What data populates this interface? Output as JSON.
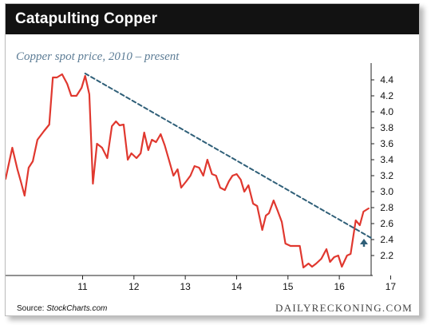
{
  "header": {
    "title": "Catapulting Copper"
  },
  "subtitle": "Copper spot price, 2010 – present",
  "source": {
    "prefix": "Source: ",
    "name": "StockCharts.com"
  },
  "brand": "DAILYRECKONING.COM",
  "colors": {
    "header_bg": "#121212",
    "price_line": "#e0382f",
    "trend_line": "#2f5f78",
    "arrow": "#2f5f78"
  },
  "chart_data": {
    "type": "line",
    "title": "Catapulting Copper",
    "subtitle": "Copper spot price, 2010 – present",
    "xlabel": "",
    "ylabel": "",
    "x_ticks": [
      "11",
      "12",
      "13",
      "14",
      "15",
      "16",
      "17"
    ],
    "y_ticks": [
      "4.4",
      "4.2",
      "4.0",
      "3.8",
      "3.6",
      "3.4",
      "3.2",
      "3.0",
      "2.8",
      "2.6",
      "2.4",
      "2.2"
    ],
    "y_axis_side": "right",
    "ylim": [
      1.95,
      4.55
    ],
    "xlim": [
      2010.0,
      2017.12
    ],
    "grid": false,
    "series": [
      {
        "style": "solid",
        "points": [
          [
            2010.0,
            3.16
          ],
          [
            2010.13,
            3.55
          ],
          [
            2010.23,
            3.28
          ],
          [
            2010.3,
            3.12
          ],
          [
            2010.37,
            2.95
          ],
          [
            2010.45,
            3.3
          ],
          [
            2010.53,
            3.38
          ],
          [
            2010.62,
            3.65
          ],
          [
            2010.75,
            3.76
          ],
          [
            2010.85,
            3.84
          ],
          [
            2010.92,
            4.43
          ],
          [
            2011.0,
            4.43
          ],
          [
            2011.1,
            4.47
          ],
          [
            2011.2,
            4.35
          ],
          [
            2011.28,
            4.2
          ],
          [
            2011.38,
            4.2
          ],
          [
            2011.48,
            4.3
          ],
          [
            2011.55,
            4.45
          ],
          [
            2011.63,
            4.22
          ],
          [
            2011.7,
            3.1
          ],
          [
            2011.78,
            3.6
          ],
          [
            2011.88,
            3.55
          ],
          [
            2011.98,
            3.42
          ],
          [
            2012.07,
            3.82
          ],
          [
            2012.15,
            3.88
          ],
          [
            2012.22,
            3.83
          ],
          [
            2012.3,
            3.84
          ],
          [
            2012.38,
            3.4
          ],
          [
            2012.45,
            3.48
          ],
          [
            2012.55,
            3.42
          ],
          [
            2012.63,
            3.48
          ],
          [
            2012.7,
            3.74
          ],
          [
            2012.78,
            3.52
          ],
          [
            2012.85,
            3.65
          ],
          [
            2012.93,
            3.62
          ],
          [
            2013.02,
            3.72
          ],
          [
            2013.1,
            3.58
          ],
          [
            2013.18,
            3.4
          ],
          [
            2013.27,
            3.2
          ],
          [
            2013.35,
            3.28
          ],
          [
            2013.42,
            3.05
          ],
          [
            2013.52,
            3.13
          ],
          [
            2013.6,
            3.2
          ],
          [
            2013.68,
            3.32
          ],
          [
            2013.77,
            3.3
          ],
          [
            2013.85,
            3.2
          ],
          [
            2013.93,
            3.4
          ],
          [
            2014.02,
            3.22
          ],
          [
            2014.1,
            3.2
          ],
          [
            2014.18,
            3.05
          ],
          [
            2014.27,
            3.02
          ],
          [
            2014.35,
            3.13
          ],
          [
            2014.42,
            3.2
          ],
          [
            2014.5,
            3.22
          ],
          [
            2014.58,
            3.15
          ],
          [
            2014.65,
            3.0
          ],
          [
            2014.73,
            3.08
          ],
          [
            2014.82,
            2.85
          ],
          [
            2014.9,
            2.82
          ],
          [
            2015.0,
            2.52
          ],
          [
            2015.07,
            2.7
          ],
          [
            2015.13,
            2.73
          ],
          [
            2015.22,
            2.89
          ],
          [
            2015.3,
            2.76
          ],
          [
            2015.38,
            2.62
          ],
          [
            2015.45,
            2.35
          ],
          [
            2015.55,
            2.32
          ],
          [
            2015.65,
            2.32
          ],
          [
            2015.73,
            2.32
          ],
          [
            2015.8,
            2.05
          ],
          [
            2015.9,
            2.1
          ],
          [
            2015.97,
            2.06
          ],
          [
            2016.05,
            2.1
          ],
          [
            2016.15,
            2.16
          ],
          [
            2016.25,
            2.28
          ],
          [
            2016.32,
            2.12
          ],
          [
            2016.4,
            2.18
          ],
          [
            2016.48,
            2.2
          ],
          [
            2016.55,
            2.06
          ],
          [
            2016.65,
            2.2
          ],
          [
            2016.72,
            2.22
          ],
          [
            2016.82,
            2.64
          ],
          [
            2016.9,
            2.58
          ],
          [
            2016.97,
            2.75
          ],
          [
            2017.07,
            2.79
          ]
        ]
      },
      {
        "style": "dashed",
        "points": [
          [
            2011.55,
            4.48
          ],
          [
            2017.12,
            2.42
          ]
        ]
      }
    ],
    "annotations": [
      {
        "type": "arrow",
        "direction": "up",
        "x": 2016.98,
        "y_tip": 2.41,
        "y_base": 2.31
      }
    ]
  }
}
